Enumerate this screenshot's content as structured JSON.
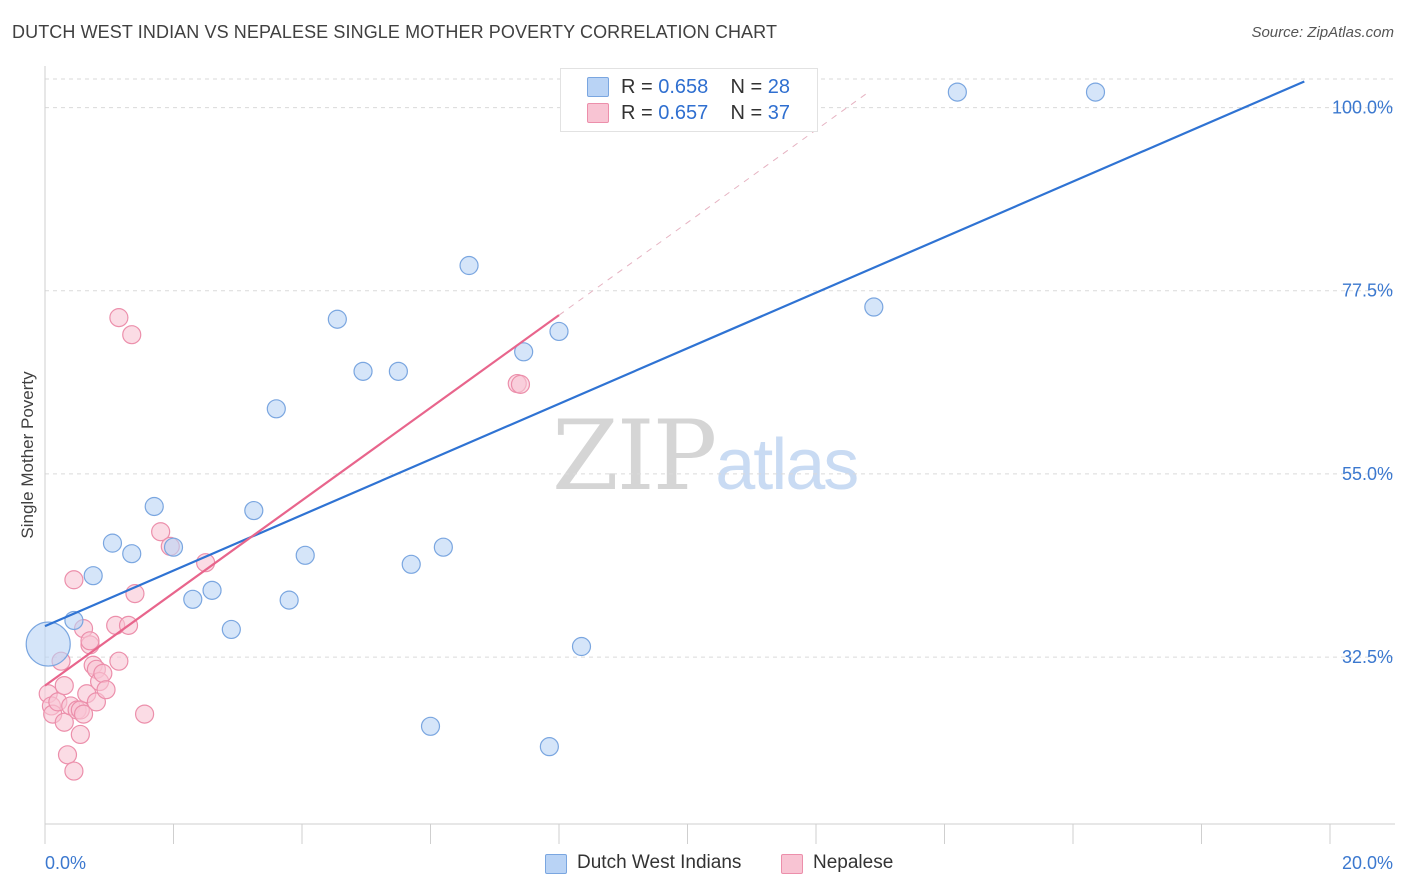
{
  "title": "DUTCH WEST INDIAN VS NEPALESE SINGLE MOTHER POVERTY CORRELATION CHART",
  "source": "Source: ZipAtlas.com",
  "watermark": {
    "zip": "ZIP",
    "atlas": "atlas"
  },
  "colors": {
    "blue_fill": "#b9d3f5",
    "blue_stroke": "#7aa6e0",
    "blue_line": "#2f73d3",
    "pink_fill": "#f8c4d3",
    "pink_stroke": "#ec8fab",
    "pink_line": "#e8658c",
    "grid": "#dadada",
    "tick_label": "#3b78cf"
  },
  "legend_top": [
    {
      "r_label": "R = ",
      "r_value": "0.658",
      "n_label": "N = ",
      "n_value": "28"
    },
    {
      "r_label": "R = ",
      "r_value": "0.657",
      "n_label": "N = ",
      "n_value": "37"
    }
  ],
  "chart_data": {
    "type": "scatter",
    "title": "DUTCH WEST INDIAN VS NEPALESE SINGLE MOTHER POVERTY CORRELATION CHART",
    "ylabel": "Single Mother Poverty",
    "xlabel": "",
    "xlim": [
      0,
      20
    ],
    "ylim": [
      12,
      104
    ],
    "x_tick_labels": [
      "0.0%",
      "20.0%"
    ],
    "y_ticks": [
      32.5,
      55.0,
      77.5,
      100.0
    ],
    "y_tick_labels": [
      "32.5%",
      "55.0%",
      "77.5%",
      "100.0%"
    ],
    "grid": true,
    "legend_position": "bottom",
    "series": [
      {
        "name": "Dutch West Indians",
        "r": 0.658,
        "n": 28,
        "trend": {
          "x": [
            0,
            19.6
          ],
          "y": [
            36.3,
            103.2
          ]
        },
        "points": [
          [
            0.05,
            34.1,
            22
          ],
          [
            0.45,
            37.0,
            9
          ],
          [
            0.75,
            42.5,
            9
          ],
          [
            1.05,
            46.5,
            9
          ],
          [
            1.35,
            45.2,
            9
          ],
          [
            1.7,
            51.0,
            9
          ],
          [
            2.0,
            46.0,
            9
          ],
          [
            2.3,
            39.6,
            9
          ],
          [
            2.6,
            40.7,
            9
          ],
          [
            2.9,
            35.9,
            9
          ],
          [
            3.25,
            50.5,
            9
          ],
          [
            3.6,
            63.0,
            9
          ],
          [
            3.8,
            39.5,
            9
          ],
          [
            4.05,
            45.0,
            9
          ],
          [
            4.55,
            74.0,
            9
          ],
          [
            4.95,
            67.6,
            9
          ],
          [
            5.5,
            67.6,
            9
          ],
          [
            5.7,
            43.9,
            9
          ],
          [
            6.0,
            24.0,
            9
          ],
          [
            6.2,
            46.0,
            9
          ],
          [
            6.6,
            80.6,
            9
          ],
          [
            7.45,
            70.0,
            9
          ],
          [
            7.85,
            21.5,
            9
          ],
          [
            8.0,
            72.5,
            9
          ],
          [
            8.35,
            33.8,
            9
          ],
          [
            12.9,
            75.5,
            9
          ],
          [
            14.2,
            101.9,
            9
          ],
          [
            16.35,
            101.9,
            9
          ]
        ]
      },
      {
        "name": "Nepalese",
        "r": 0.657,
        "n": 37,
        "trend": {
          "x": [
            0,
            8.0
          ],
          "y": [
            29.0,
            74.5
          ]
        },
        "dashed_extension": {
          "x": [
            8.0,
            12.8
          ],
          "y": [
            74.5,
            101.8
          ]
        },
        "points": [
          [
            0.05,
            28.0,
            9
          ],
          [
            0.1,
            26.5,
            9
          ],
          [
            0.12,
            25.5,
            9
          ],
          [
            0.2,
            27.0,
            9
          ],
          [
            0.25,
            32.0,
            9
          ],
          [
            0.3,
            24.5,
            9
          ],
          [
            0.3,
            29.0,
            9
          ],
          [
            0.35,
            20.5,
            9
          ],
          [
            0.4,
            26.5,
            9
          ],
          [
            0.45,
            18.5,
            9
          ],
          [
            0.45,
            42.0,
            9
          ],
          [
            0.5,
            26.0,
            9
          ],
          [
            0.55,
            26.0,
            9
          ],
          [
            0.55,
            23.0,
            9
          ],
          [
            0.6,
            25.5,
            9
          ],
          [
            0.6,
            36.0,
            9
          ],
          [
            0.65,
            28.0,
            9
          ],
          [
            0.7,
            34.0,
            9
          ],
          [
            0.7,
            34.5,
            9
          ],
          [
            0.75,
            31.5,
            9
          ],
          [
            0.8,
            27.0,
            9
          ],
          [
            0.8,
            31.0,
            9
          ],
          [
            0.85,
            29.5,
            9
          ],
          [
            0.9,
            30.5,
            9
          ],
          [
            0.95,
            28.5,
            9
          ],
          [
            1.1,
            36.4,
            9
          ],
          [
            1.15,
            32.0,
            9
          ],
          [
            1.3,
            36.4,
            9
          ],
          [
            1.4,
            40.3,
            9
          ],
          [
            1.55,
            25.5,
            9
          ],
          [
            1.15,
            74.2,
            9
          ],
          [
            1.35,
            72.1,
            9
          ],
          [
            1.8,
            47.9,
            9
          ],
          [
            1.95,
            46.1,
            9
          ],
          [
            2.5,
            44.1,
            9
          ],
          [
            7.35,
            66.1,
            9
          ],
          [
            7.4,
            66.0,
            9
          ]
        ]
      }
    ]
  }
}
